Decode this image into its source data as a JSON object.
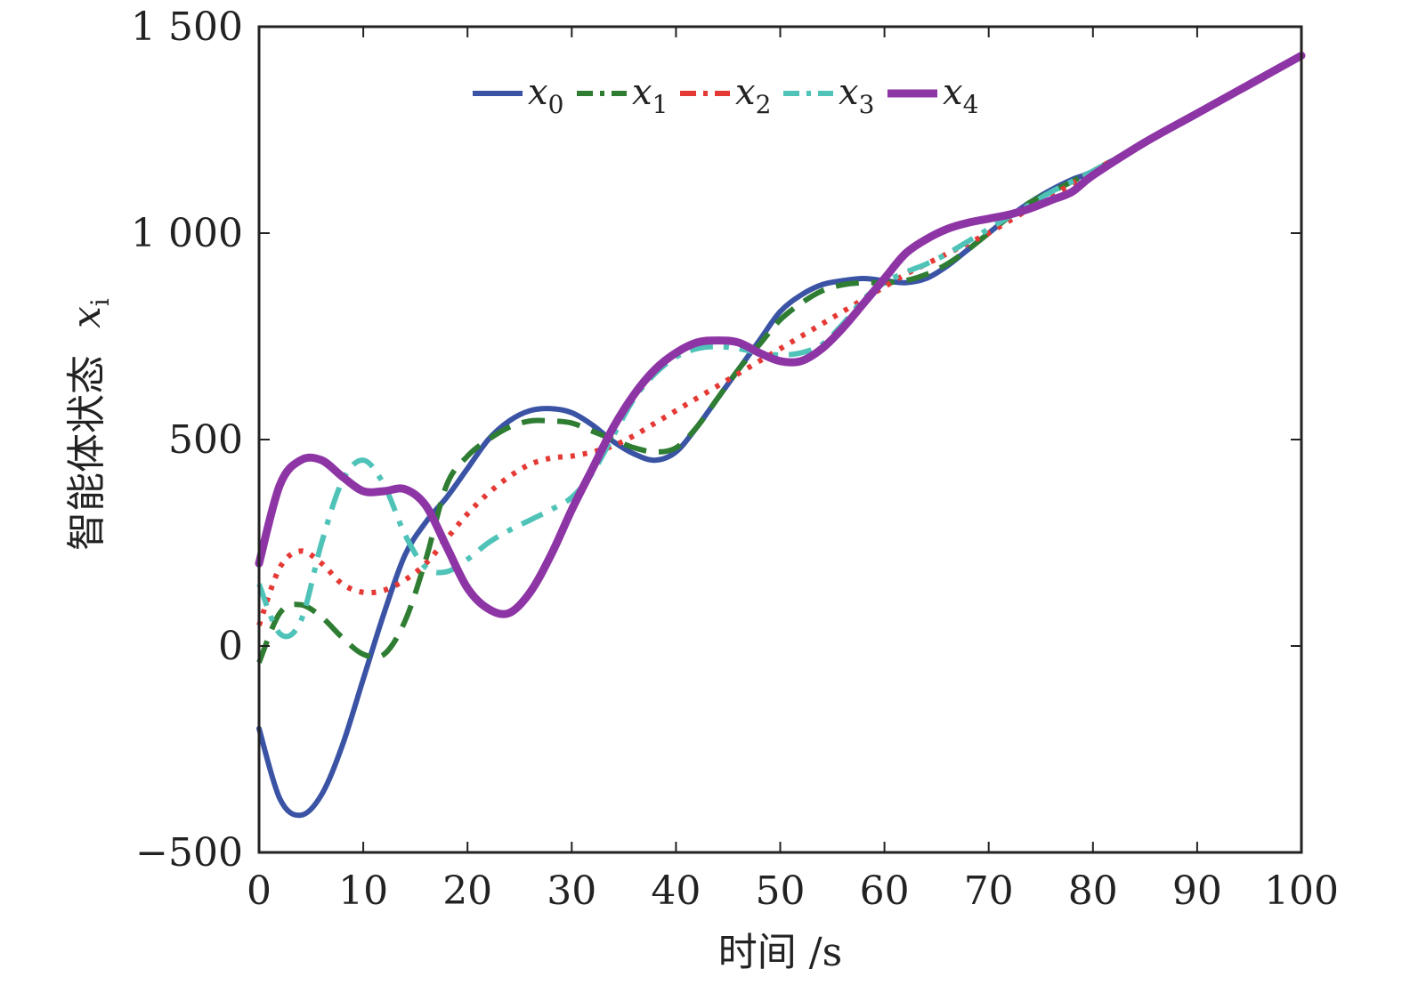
{
  "chart_data": {
    "type": "line",
    "xlabel": "时间 /s",
    "ylabel": "智能体状态",
    "ylabel_symbol": "x",
    "ylabel_symbol_sub": "i",
    "xlim": [
      0,
      100
    ],
    "ylim": [
      -500,
      1500
    ],
    "xticks": [
      0,
      10,
      20,
      30,
      40,
      50,
      60,
      70,
      80,
      90,
      100
    ],
    "xtick_labels": [
      "0",
      "10",
      "20",
      "30",
      "40",
      "50",
      "60",
      "70",
      "80",
      "90",
      "100"
    ],
    "yticks": [
      -500,
      0,
      500,
      1000,
      1500
    ],
    "ytick_labels": [
      "−500",
      "0",
      "500",
      "1 000",
      "1 500"
    ],
    "grid": false,
    "legend_position": "top-center",
    "series": [
      {
        "name": "x",
        "sub": "0",
        "color": "#3a53a4",
        "dash": "solid",
        "x": [
          0,
          2,
          4,
          6,
          8,
          10,
          12,
          14,
          16,
          18,
          20,
          22,
          24,
          26,
          28,
          30,
          32,
          34,
          36,
          38,
          40,
          42,
          44,
          46,
          48,
          50,
          52,
          54,
          56,
          58,
          60,
          62,
          64,
          66,
          68,
          70,
          72,
          74,
          76,
          78,
          80,
          85,
          90,
          95,
          100
        ],
        "values": [
          -200,
          -370,
          -410,
          -360,
          -240,
          -80,
          80,
          220,
          300,
          360,
          430,
          500,
          545,
          570,
          575,
          565,
          535,
          495,
          465,
          450,
          470,
          530,
          600,
          670,
          740,
          810,
          850,
          875,
          885,
          890,
          885,
          880,
          890,
          920,
          960,
          1000,
          1040,
          1075,
          1105,
          1130,
          1150,
          1220,
          1290,
          1360,
          1430
        ]
      },
      {
        "name": "x",
        "sub": "1",
        "color": "#2e7d32",
        "dash": "dash",
        "x": [
          0,
          2,
          4,
          6,
          8,
          10,
          12,
          14,
          16,
          18,
          20,
          22,
          24,
          26,
          28,
          30,
          32,
          34,
          36,
          38,
          40,
          42,
          44,
          46,
          48,
          50,
          52,
          54,
          56,
          58,
          60,
          62,
          64,
          66,
          68,
          70,
          72,
          74,
          76,
          78,
          80,
          85,
          90,
          95,
          100
        ],
        "values": [
          -40,
          80,
          100,
          70,
          20,
          -20,
          -20,
          60,
          210,
          390,
          460,
          500,
          530,
          545,
          545,
          540,
          520,
          500,
          480,
          470,
          480,
          530,
          600,
          670,
          730,
          790,
          830,
          860,
          875,
          880,
          880,
          885,
          900,
          925,
          960,
          1000,
          1040,
          1075,
          1100,
          1125,
          1150,
          1220,
          1290,
          1360,
          1430
        ]
      },
      {
        "name": "x",
        "sub": "2",
        "color": "#e53935",
        "dash": "dot",
        "x": [
          0,
          2,
          4,
          6,
          8,
          10,
          12,
          14,
          16,
          18,
          20,
          22,
          24,
          26,
          28,
          30,
          32,
          34,
          36,
          38,
          40,
          42,
          44,
          46,
          48,
          50,
          52,
          54,
          56,
          58,
          60,
          62,
          64,
          66,
          68,
          70,
          72,
          74,
          76,
          78,
          80,
          85,
          90,
          95,
          100
        ],
        "values": [
          50,
          190,
          230,
          200,
          150,
          130,
          135,
          160,
          200,
          260,
          320,
          370,
          410,
          440,
          455,
          460,
          470,
          485,
          510,
          540,
          570,
          600,
          630,
          660,
          690,
          720,
          750,
          780,
          810,
          840,
          870,
          900,
          925,
          950,
          975,
          1000,
          1030,
          1060,
          1090,
          1120,
          1150,
          1220,
          1290,
          1360,
          1430
        ]
      },
      {
        "name": "x",
        "sub": "3",
        "color": "#4fc3b8",
        "dash": "dashdot",
        "x": [
          0,
          2,
          4,
          6,
          8,
          10,
          12,
          14,
          16,
          18,
          20,
          22,
          24,
          26,
          28,
          30,
          32,
          34,
          36,
          38,
          40,
          42,
          44,
          46,
          48,
          50,
          52,
          54,
          56,
          58,
          60,
          62,
          64,
          66,
          68,
          70,
          72,
          74,
          76,
          78,
          80,
          85,
          90,
          95,
          100
        ],
        "values": [
          150,
          30,
          60,
          250,
          400,
          450,
          390,
          270,
          190,
          180,
          210,
          250,
          280,
          305,
          330,
          360,
          420,
          510,
          600,
          660,
          700,
          720,
          725,
          720,
          710,
          705,
          710,
          730,
          780,
          840,
          880,
          905,
          925,
          950,
          980,
          1010,
          1040,
          1070,
          1100,
          1125,
          1150,
          1220,
          1290,
          1360,
          1430
        ]
      },
      {
        "name": "x",
        "sub": "4",
        "color": "#8e35a6",
        "dash": "solid-thick",
        "x": [
          0,
          2,
          4,
          6,
          8,
          10,
          12,
          14,
          16,
          18,
          20,
          22,
          24,
          26,
          28,
          30,
          32,
          34,
          36,
          38,
          40,
          42,
          44,
          46,
          48,
          50,
          52,
          54,
          56,
          58,
          60,
          62,
          64,
          66,
          68,
          70,
          72,
          74,
          76,
          78,
          80,
          85,
          90,
          95,
          100
        ],
        "values": [
          200,
          390,
          450,
          450,
          410,
          375,
          375,
          380,
          340,
          240,
          140,
          90,
          80,
          130,
          220,
          330,
          430,
          530,
          610,
          670,
          710,
          735,
          740,
          735,
          710,
          690,
          690,
          720,
          770,
          830,
          890,
          950,
          985,
          1010,
          1025,
          1035,
          1045,
          1060,
          1080,
          1100,
          1140,
          1220,
          1290,
          1360,
          1430
        ]
      }
    ]
  }
}
